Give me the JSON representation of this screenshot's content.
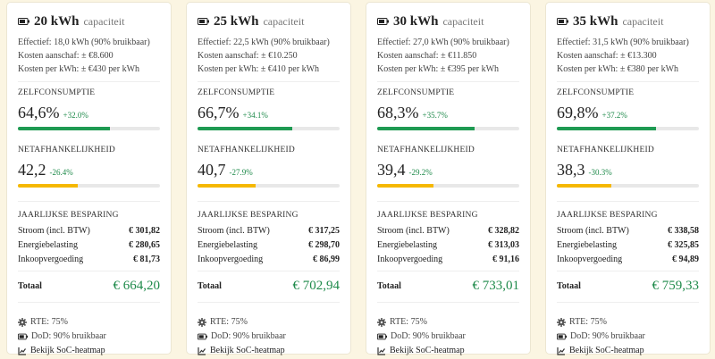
{
  "cards": [
    {
      "title": "20 kWh",
      "subtitle": "capaciteit",
      "details": [
        "Effectief: 18,0 kWh (90% bruikbaar)",
        "Kosten aanschaf: ± €8.600",
        "Kosten per kWh: ± €430 per kWh"
      ],
      "zelfconsumptie": {
        "label": "ZELFCONSUMPTIE",
        "value": 64.6,
        "value_label": "64,6%",
        "change": "+32.0%"
      },
      "netafhankelijkheid": {
        "label": "NETAFHANKELIJKHEID",
        "value": 42.2,
        "value_label": "42,2",
        "change": "-26.4%"
      },
      "savings": {
        "title": "JAARLIJKSE BESPARING",
        "rows": [
          [
            "Stroom (incl. BTW)",
            "€ 301,82"
          ],
          [
            "Energiebelasting",
            "€ 280,65"
          ],
          [
            "Inkoopvergoeding",
            "€ 81,73"
          ]
        ],
        "total_label": "Totaal",
        "total": "€ 664,20"
      },
      "footer": [
        "RTE: 75%",
        "DoD: 90% bruikbaar"
      ],
      "link": "Bekijk SoC-heatmap"
    },
    {
      "title": "25 kWh",
      "subtitle": "capaciteit",
      "details": [
        "Effectief: 22,5 kWh (90% bruikbaar)",
        "Kosten aanschaf: ± €10.250",
        "Kosten per kWh: ± €410 per kWh"
      ],
      "zelfconsumptie": {
        "label": "ZELFCONSUMPTIE",
        "value": 66.7,
        "value_label": "66,7%",
        "change": "+34.1%"
      },
      "netafhankelijkheid": {
        "label": "NETAFHANKELIJKHEID",
        "value": 40.7,
        "value_label": "40,7",
        "change": "-27.9%"
      },
      "savings": {
        "title": "JAARLIJKSE BESPARING",
        "rows": [
          [
            "Stroom (incl. BTW)",
            "€ 317,25"
          ],
          [
            "Energiebelasting",
            "€ 298,70"
          ],
          [
            "Inkoopvergoeding",
            "€ 86,99"
          ]
        ],
        "total_label": "Totaal",
        "total": "€ 702,94"
      },
      "footer": [
        "RTE: 75%",
        "DoD: 90% bruikbaar"
      ],
      "link": "Bekijk SoC-heatmap"
    },
    {
      "title": "30 kWh",
      "subtitle": "capaciteit",
      "details": [
        "Effectief: 27,0 kWh (90% bruikbaar)",
        "Kosten aanschaf: ± €11.850",
        "Kosten per kWh: ± €395 per kWh"
      ],
      "zelfconsumptie": {
        "label": "ZELFCONSUMPTIE",
        "value": 68.3,
        "value_label": "68,3%",
        "change": "+35.7%"
      },
      "netafhankelijkheid": {
        "label": "NETAFHANKELIJKHEID",
        "value": 39.4,
        "value_label": "39,4",
        "change": "-29.2%"
      },
      "savings": {
        "title": "JAARLIJKSE BESPARING",
        "rows": [
          [
            "Stroom (incl. BTW)",
            "€ 328,82"
          ],
          [
            "Energiebelasting",
            "€ 313,03"
          ],
          [
            "Inkoopvergoeding",
            "€ 91,16"
          ]
        ],
        "total_label": "Totaal",
        "total": "€ 733,01"
      },
      "footer": [
        "RTE: 75%",
        "DoD: 90% bruikbaar"
      ],
      "link": "Bekijk SoC-heatmap"
    },
    {
      "title": "35 kWh",
      "subtitle": "capaciteit",
      "details": [
        "Effectief: 31,5 kWh (90% bruikbaar)",
        "Kosten aanschaf: ± €13.300",
        "Kosten per kWh: ± €380 per kWh"
      ],
      "zelfconsumptie": {
        "label": "ZELFCONSUMPTIE",
        "value": 69.8,
        "value_label": "69,8%",
        "change": "+37.2%"
      },
      "netafhankelijkheid": {
        "label": "NETAFHANKELIJKHEID",
        "value": 38.3,
        "value_label": "38,3",
        "change": "-30.3%"
      },
      "savings": {
        "title": "JAARLIJKSE BESPARING",
        "rows": [
          [
            "Stroom (incl. BTW)",
            "€ 338,58"
          ],
          [
            "Energiebelasting",
            "€ 325,85"
          ],
          [
            "Inkoopvergoeding",
            "€ 94,89"
          ]
        ],
        "total_label": "Totaal",
        "total": "€ 759,33"
      },
      "footer": [
        "RTE: 75%",
        "DoD: 90% bruikbaar"
      ],
      "link": "Bekijk SoC-heatmap"
    }
  ]
}
